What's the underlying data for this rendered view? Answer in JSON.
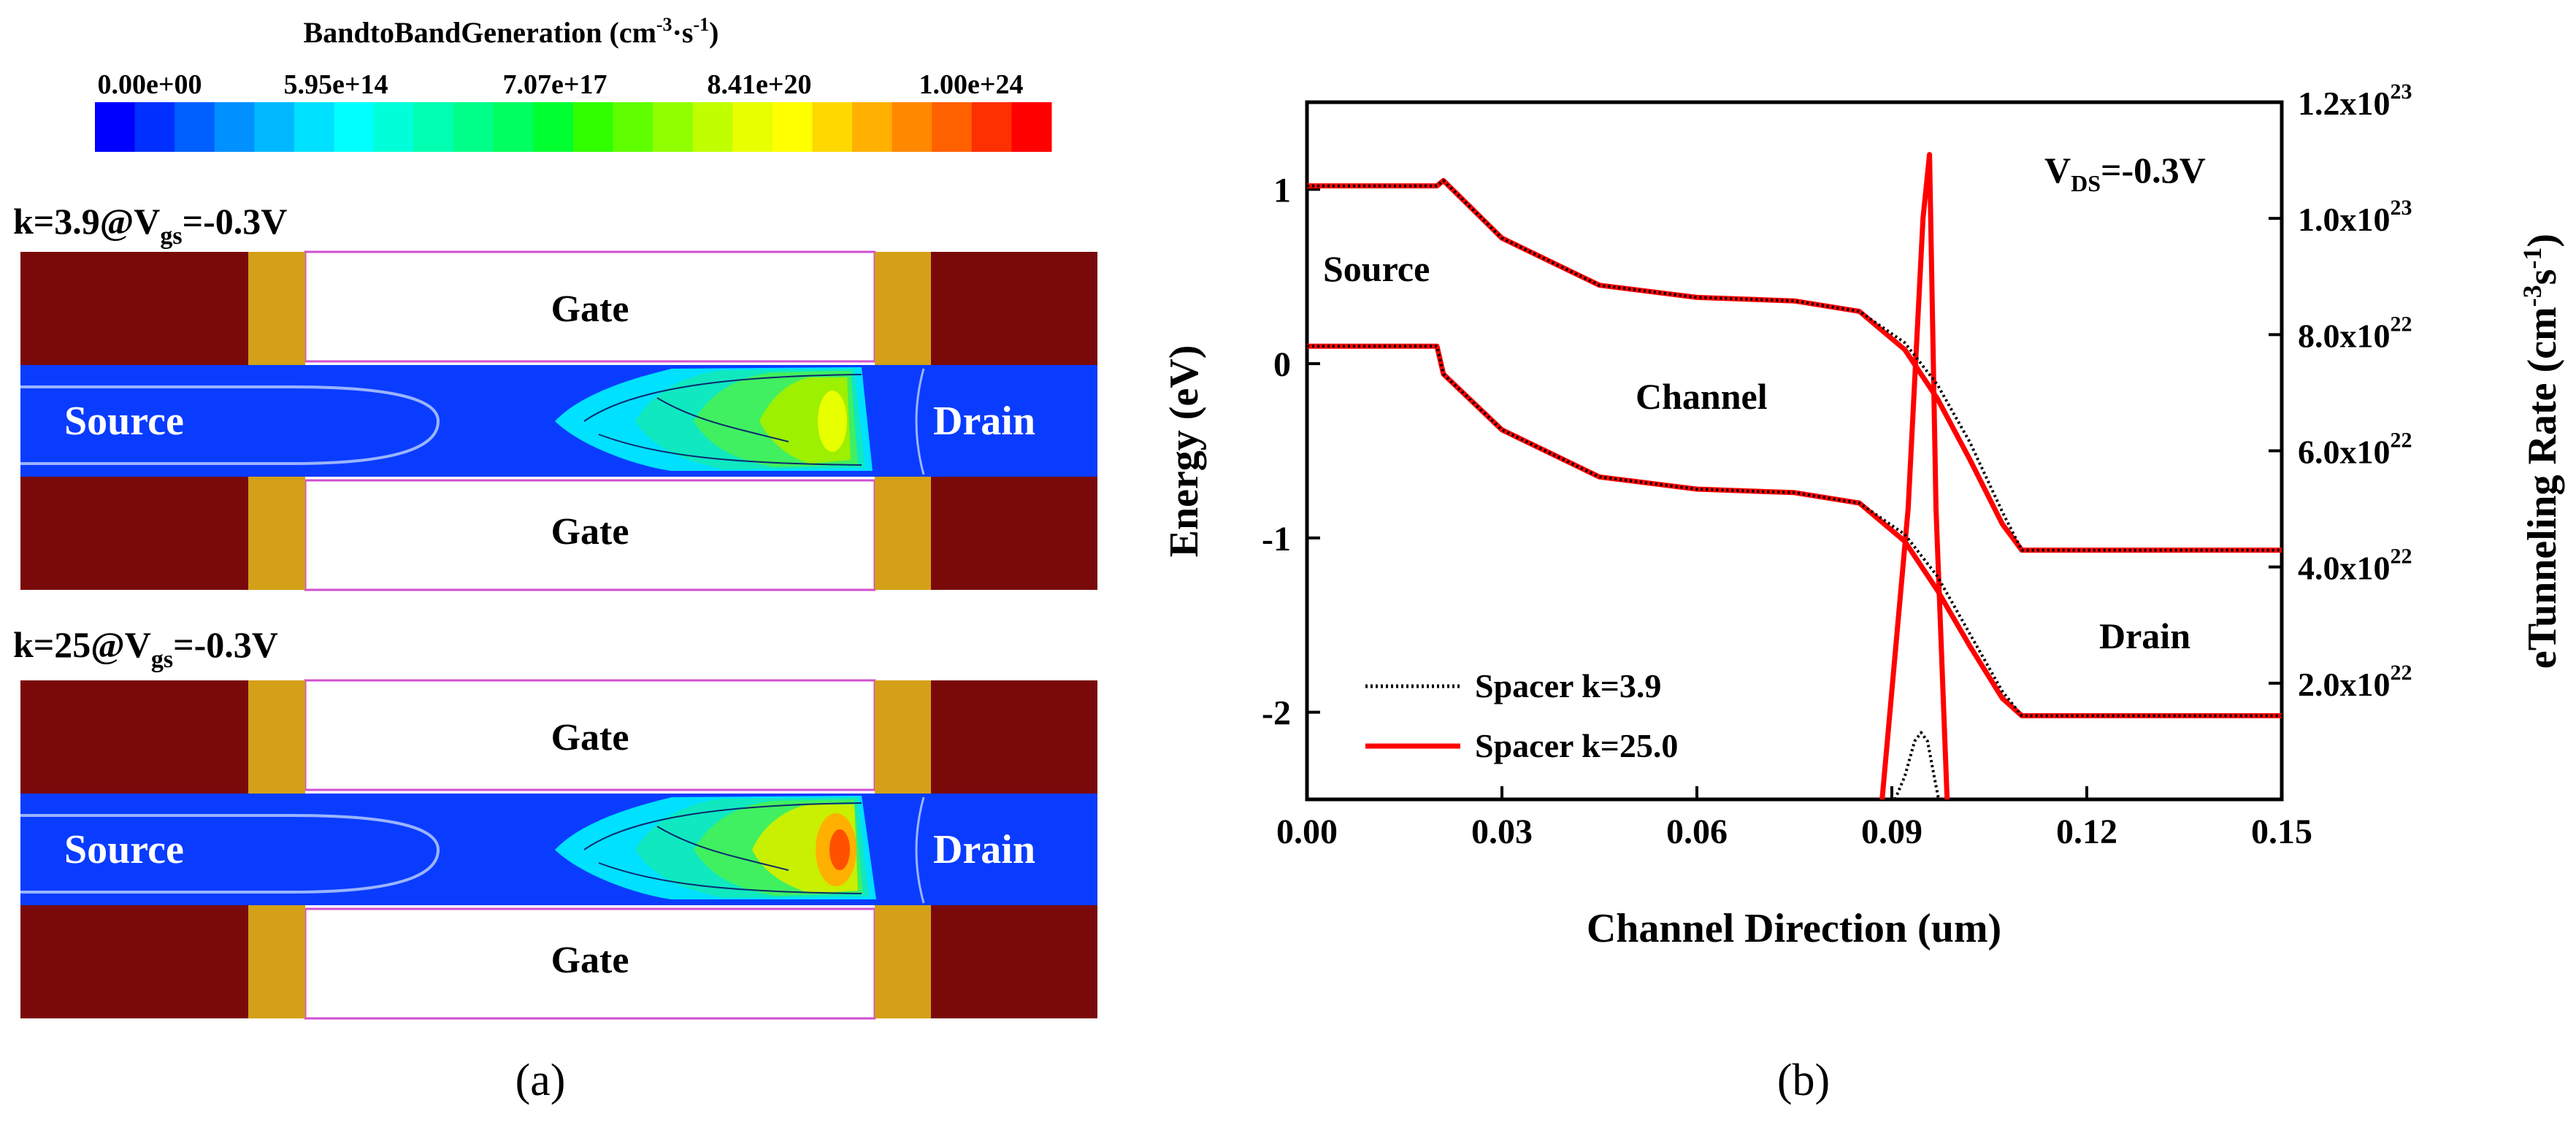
{
  "panel_a": {
    "colorbar": {
      "title": "BandtoBandGeneration (cm",
      "title_sup1": "-3",
      "title_mid": "·s",
      "title_sup2": "-1",
      "title_end": ")",
      "ticks": [
        "0.00e+00",
        "5.95e+14",
        "7.07e+17",
        "8.41e+20",
        "1.00e+24"
      ],
      "colors": [
        "#0000ff",
        "#0030ff",
        "#0060ff",
        "#0090ff",
        "#00b8ff",
        "#00e0ff",
        "#00ffff",
        "#00ffd8",
        "#00ffb0",
        "#00ff88",
        "#00ff60",
        "#00ff30",
        "#30ff00",
        "#60ff00",
        "#90ff00",
        "#c0ff00",
        "#e8ff00",
        "#ffff00",
        "#ffd800",
        "#ffb000",
        "#ff8800",
        "#ff6000",
        "#ff3000",
        "#ff0000"
      ]
    },
    "top": {
      "label_prefix": "k=3.9@V",
      "label_sub": "gs",
      "label_suffix": "=-0.3V",
      "gate_top": "Gate",
      "gate_bottom": "Gate",
      "source": "Source",
      "drain": "Drain"
    },
    "bottom": {
      "label_prefix": "k=25@V",
      "label_sub": "gs",
      "label_suffix": "=-0.3V",
      "gate_top": "Gate",
      "gate_bottom": "Gate",
      "source": "Source",
      "drain": "Drain"
    },
    "caption": "(a)",
    "colors": {
      "contact": "#7a0a0a",
      "spacer": "#d4a017",
      "body": "#0a3cff"
    }
  },
  "panel_b": {
    "caption": "(b)",
    "annotations": {
      "vds_prefix": "V",
      "vds_sub": "DS",
      "vds_suffix": "=-0.3V",
      "source": "Source",
      "channel": "Channel",
      "drain": "Drain"
    },
    "chart_data": {
      "type": "line",
      "xlabel": "Channel Direction (um)",
      "ylabel": "Energy (eV)",
      "y2label_main": "eTunneling Rate (cm",
      "y2label_sup": "-3",
      "y2label_s": "s",
      "y2label_sup2": "-1",
      "y2label_end": ")",
      "xlim": [
        0,
        0.15
      ],
      "ylim": [
        -2.5,
        1.5
      ],
      "y2lim": [
        0,
        1.2e+23
      ],
      "xticks": [
        "0.00",
        "0.03",
        "0.06",
        "0.09",
        "0.12",
        "0.15"
      ],
      "yticks": [
        "1",
        "0",
        "-1",
        "-2"
      ],
      "y2ticks": [
        {
          "mant": "2.0x10",
          "exp": "22"
        },
        {
          "mant": "4.0x10",
          "exp": "22"
        },
        {
          "mant": "6.0x10",
          "exp": "22"
        },
        {
          "mant": "8.0x10",
          "exp": "22"
        },
        {
          "mant": "1.0x10",
          "exp": "23"
        },
        {
          "mant": "1.2x10",
          "exp": "23"
        }
      ],
      "legend": [
        "Spacer k=3.9",
        "Spacer k=25.0"
      ],
      "series": [
        {
          "name": "Spacer k=3.9",
          "band": "Ec",
          "x": [
            0.0,
            0.02,
            0.021,
            0.03,
            0.045,
            0.06,
            0.075,
            0.085,
            0.092,
            0.097,
            0.102,
            0.107,
            0.11,
            0.15
          ],
          "y": [
            1.02,
            1.02,
            1.05,
            0.72,
            0.45,
            0.38,
            0.36,
            0.3,
            0.12,
            -0.12,
            -0.45,
            -0.85,
            -1.07,
            -1.07
          ]
        },
        {
          "name": "Spacer k=3.9",
          "band": "Ev",
          "x": [
            0.0,
            0.02,
            0.021,
            0.03,
            0.045,
            0.06,
            0.075,
            0.085,
            0.092,
            0.097,
            0.102,
            0.107,
            0.11,
            0.15
          ],
          "y": [
            0.1,
            0.1,
            -0.06,
            -0.38,
            -0.65,
            -0.72,
            -0.74,
            -0.8,
            -0.98,
            -1.22,
            -1.55,
            -1.88,
            -2.02,
            -2.02
          ]
        },
        {
          "name": "Spacer k=3.9",
          "band": "rate",
          "x": [
            0.0905,
            0.092,
            0.0935,
            0.0945,
            0.0955,
            0.0965,
            0.0972
          ],
          "y": [
            0,
            4e+21,
            1e+22,
            1.15e+22,
            1e+22,
            4e+21,
            0
          ]
        },
        {
          "name": "Spacer k=25.0",
          "band": "Ec",
          "x": [
            0.0,
            0.02,
            0.021,
            0.03,
            0.045,
            0.06,
            0.075,
            0.085,
            0.092,
            0.097,
            0.102,
            0.107,
            0.11,
            0.15
          ],
          "y": [
            1.02,
            1.02,
            1.05,
            0.72,
            0.45,
            0.38,
            0.36,
            0.3,
            0.08,
            -0.2,
            -0.55,
            -0.92,
            -1.07,
            -1.07
          ]
        },
        {
          "name": "Spacer k=25.0",
          "band": "Ev",
          "x": [
            0.0,
            0.02,
            0.021,
            0.03,
            0.045,
            0.06,
            0.075,
            0.085,
            0.092,
            0.097,
            0.102,
            0.107,
            0.11,
            0.15
          ],
          "y": [
            0.1,
            0.1,
            -0.06,
            -0.38,
            -0.65,
            -0.72,
            -0.74,
            -0.8,
            -1.02,
            -1.3,
            -1.62,
            -1.92,
            -2.02,
            -2.02
          ]
        },
        {
          "name": "Spacer k=25.0",
          "band": "rate",
          "x": [
            0.0885,
            0.0925,
            0.0948,
            0.0958,
            0.0968,
            0.0985
          ],
          "y": [
            0,
            5e+22,
            1e+23,
            1.11e+23,
            5e+22,
            0
          ]
        }
      ],
      "colors": {
        "k39": "#000000",
        "k25": "#ff0000"
      }
    }
  }
}
